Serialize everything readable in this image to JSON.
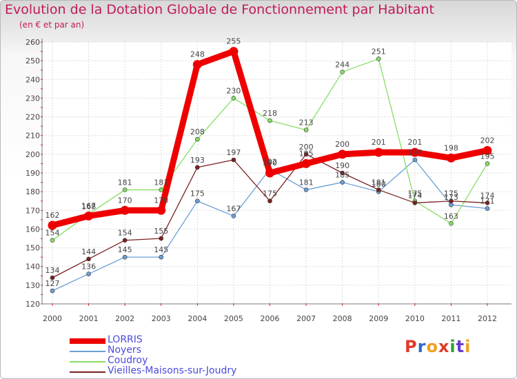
{
  "chart_data": {
    "type": "line",
    "title": "Evolution de la Dotation Globale de Fonctionnement par Habitant",
    "subtitle": "(en € et par an)",
    "categories": [
      "2000",
      "2001",
      "2002",
      "2003",
      "2004",
      "2005",
      "2006",
      "2007",
      "2008",
      "2009",
      "2010",
      "2011",
      "2012"
    ],
    "ylim": [
      120,
      260
    ],
    "yticks": [
      120,
      130,
      140,
      150,
      160,
      170,
      180,
      190,
      200,
      210,
      220,
      230,
      240,
      250,
      260
    ],
    "grid": true,
    "legend_position": "bottom-left",
    "series": [
      {
        "name": "LORRIS",
        "color": "#ee0000",
        "values": [
          162,
          167,
          170,
          170,
          248,
          255,
          190,
          195,
          200,
          201,
          201,
          198,
          202
        ]
      },
      {
        "name": "Noyers",
        "color": "#6a9fd4",
        "values": [
          127,
          136,
          145,
          145,
          175,
          167,
          192,
          181,
          185,
          180,
          197,
          173,
          171
        ]
      },
      {
        "name": "Coudroy",
        "color": "#88dd66",
        "values": [
          154,
          168,
          181,
          181,
          208,
          230,
          218,
          213,
          244,
          251,
          175,
          163,
          195
        ]
      },
      {
        "name": "Vieilles-Maisons-sur-Joudry",
        "color": "#7a2020",
        "values": [
          134,
          144,
          154,
          155,
          193,
          197,
          175,
          200,
          190,
          181,
          174,
          175,
          174
        ]
      }
    ]
  },
  "branding": {
    "logo_text": "Proxiti",
    "letter_colors": [
      "#e03a2a",
      "#2a6ad0",
      "#f0a020",
      "#e03a2a",
      "#2ea02e",
      "#6a3ad0",
      "#f0a020"
    ]
  }
}
